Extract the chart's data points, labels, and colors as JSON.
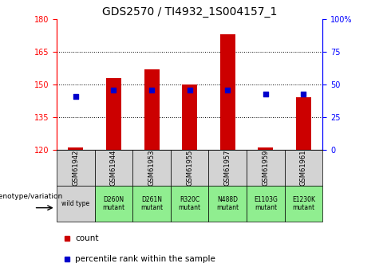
{
  "title": "GDS2570 / TI4932_1S004157_1",
  "samples": [
    "GSM61942",
    "GSM61944",
    "GSM61953",
    "GSM61955",
    "GSM61957",
    "GSM61959",
    "GSM61961"
  ],
  "genotype": [
    "wild type",
    "D260N\nmutant",
    "D261N\nmutant",
    "R320C\nmutant",
    "N488D\nmutant",
    "E1103G\nmutant",
    "E1230K\nmutant"
  ],
  "count_values": [
    121,
    153,
    157,
    150,
    173,
    121,
    144
  ],
  "percentile_values": [
    41,
    46,
    46,
    46,
    46,
    43,
    43
  ],
  "ymin": 120,
  "ymax": 180,
  "yticks": [
    120,
    135,
    150,
    165,
    180
  ],
  "y2ticks": [
    0,
    25,
    50,
    75,
    100
  ],
  "y2labels": [
    "0",
    "25",
    "50",
    "75",
    "100%"
  ],
  "bar_color": "#cc0000",
  "dot_color": "#0000cc",
  "bar_width": 0.4,
  "dot_size": 25,
  "genotype_bg_color_wt": "#d3d3d3",
  "genotype_bg_color_mutant": "#90ee90",
  "sample_bg_color": "#d3d3d3",
  "grid_color": "black",
  "title_fontsize": 10,
  "tick_fontsize": 7,
  "legend_fontsize": 7.5,
  "sample_fontsize": 6,
  "geno_fontsize": 5.5
}
